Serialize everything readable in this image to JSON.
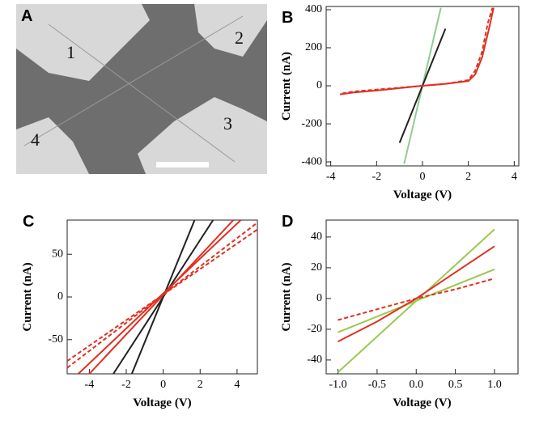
{
  "image_panel": {
    "label": "A",
    "labels": [
      "1",
      "2",
      "3",
      "4"
    ]
  },
  "chart_data": [
    {
      "type": "line",
      "panel": "B",
      "xlabel": "Voltage (V)",
      "ylabel": "Current (nA)",
      "xlim": [
        -4.2,
        4.2
      ],
      "ylim": [
        -421,
        417
      ],
      "xticks": [
        -4,
        -2,
        0,
        2,
        4
      ],
      "yticks": [
        -400,
        -200,
        0,
        200,
        400
      ],
      "series": [
        {
          "color": "#90cc90",
          "x": [
            -0.8,
            0.8
          ],
          "values": [
            -410,
            410
          ]
        },
        {
          "color": "#222222",
          "x": [
            -1,
            1
          ],
          "values": [
            -300,
            300
          ]
        },
        {
          "color": "#e03020",
          "x": [
            -3.6,
            -3,
            -2,
            -1,
            0,
            1,
            2,
            2.3,
            2.6,
            2.9,
            3.1
          ],
          "values": [
            -45,
            -35,
            -25,
            -12,
            0,
            10,
            25,
            60,
            150,
            300,
            410
          ]
        },
        {
          "color": "#e03020",
          "dash": true,
          "x": [
            -3.5,
            -3,
            -2,
            -1,
            0,
            1,
            2,
            2.3,
            2.6,
            2.85,
            3.05
          ],
          "values": [
            -40,
            -30,
            -20,
            -10,
            0,
            10,
            30,
            80,
            180,
            330,
            410
          ]
        }
      ]
    },
    {
      "type": "line",
      "panel": "C",
      "xlabel": "Voltage (V)",
      "ylabel": "Current (nA)",
      "xlim": [
        -5.2,
        5.1
      ],
      "ylim": [
        -90,
        90
      ],
      "xticks": [
        -4,
        -2,
        0,
        2,
        4
      ],
      "yticks": [
        -50,
        0,
        50
      ],
      "series": [
        {
          "color": "#222222",
          "x": [
            -1.7,
            1.7
          ],
          "values": [
            -90,
            90
          ]
        },
        {
          "color": "#222222",
          "x": [
            -2.7,
            2.7
          ],
          "values": [
            -90,
            90
          ]
        },
        {
          "color": "#e03020",
          "x": [
            -4,
            3.8
          ],
          "values": [
            -90,
            90
          ]
        },
        {
          "color": "#e03020",
          "x": [
            -4.6,
            4.2
          ],
          "values": [
            -90,
            90
          ]
        },
        {
          "color": "#e03020",
          "dash": true,
          "x": [
            -5.2,
            5.1
          ],
          "values": [
            -83,
            87
          ]
        },
        {
          "color": "#e03020",
          "dash": true,
          "x": [
            -5.2,
            5.1
          ],
          "values": [
            -75,
            79
          ]
        }
      ]
    },
    {
      "type": "line",
      "panel": "D",
      "xlabel": "Voltage (V)",
      "ylabel": "Current (nA)",
      "xlim": [
        -1.15,
        1.3
      ],
      "ylim": [
        -49,
        51
      ],
      "xticks": [
        {
          "value": -1,
          "label": "-1.0"
        },
        {
          "value": -0.5,
          "label": "-0.5"
        },
        {
          "value": 0,
          "label": "0.0"
        },
        {
          "value": 0.5,
          "label": "0.5"
        },
        {
          "value": 1,
          "label": "1.0"
        }
      ],
      "yticks": [
        -40,
        -20,
        0,
        20,
        40
      ],
      "series": [
        {
          "color": "#9cc850",
          "x": [
            -1,
            1
          ],
          "values": [
            -48,
            45
          ]
        },
        {
          "color": "#9cc850",
          "x": [
            -1,
            1
          ],
          "values": [
            -22,
            19
          ]
        },
        {
          "color": "#e03020",
          "x": [
            -1,
            -0.5,
            0,
            0.5,
            1
          ],
          "values": [
            -28,
            -15,
            0,
            17,
            34
          ]
        },
        {
          "color": "#e03020",
          "dash": true,
          "x": [
            -1,
            -0.5,
            0,
            0.5,
            1
          ],
          "values": [
            -14,
            -7,
            0,
            6,
            13
          ]
        }
      ]
    }
  ]
}
